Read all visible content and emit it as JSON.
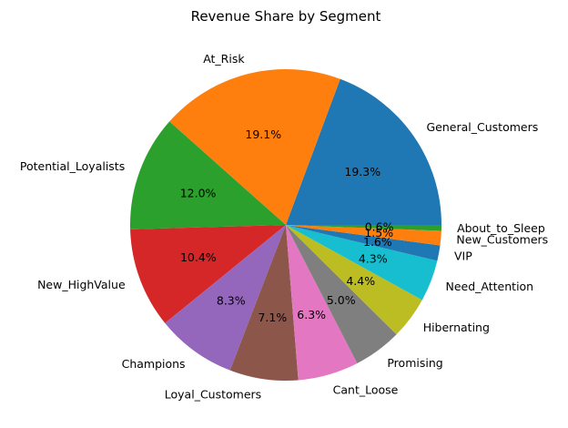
{
  "chart_data": {
    "type": "pie",
    "title": "Revenue Share by Segment",
    "start_angle_deg": 0,
    "direction": "counterclockwise",
    "slices": [
      {
        "label": "General_Customers",
        "value": 19.3,
        "pct_text": "19.3%",
        "color": "#1f77b4"
      },
      {
        "label": "At_Risk",
        "value": 19.1,
        "pct_text": "19.1%",
        "color": "#ff7f0e"
      },
      {
        "label": "Potential_Loyalists",
        "value": 12.0,
        "pct_text": "12.0%",
        "color": "#2ca02c"
      },
      {
        "label": "New_HighValue",
        "value": 10.4,
        "pct_text": "10.4%",
        "color": "#d62728"
      },
      {
        "label": "Champions",
        "value": 8.3,
        "pct_text": "8.3%",
        "color": "#9467bd"
      },
      {
        "label": "Loyal_Customers",
        "value": 7.1,
        "pct_text": "7.1%",
        "color": "#8c564b"
      },
      {
        "label": "Cant_Loose",
        "value": 6.3,
        "pct_text": "6.3%",
        "color": "#e377c2"
      },
      {
        "label": "Promising",
        "value": 5.0,
        "pct_text": "5.0%",
        "color": "#7f7f7f"
      },
      {
        "label": "Hibernating",
        "value": 4.4,
        "pct_text": "4.4%",
        "color": "#bcbd22"
      },
      {
        "label": "Need_Attention",
        "value": 4.3,
        "pct_text": "4.3%",
        "color": "#17becf"
      },
      {
        "label": "VIP",
        "value": 1.6,
        "pct_text": "1.6%",
        "color": "#1f77b4"
      },
      {
        "label": "New_Customers",
        "value": 1.5,
        "pct_text": "1.5%",
        "color": "#ff7f0e"
      },
      {
        "label": "About_to_Sleep",
        "value": 0.6,
        "pct_text": "0.6%",
        "color": "#2ca02c"
      }
    ]
  }
}
